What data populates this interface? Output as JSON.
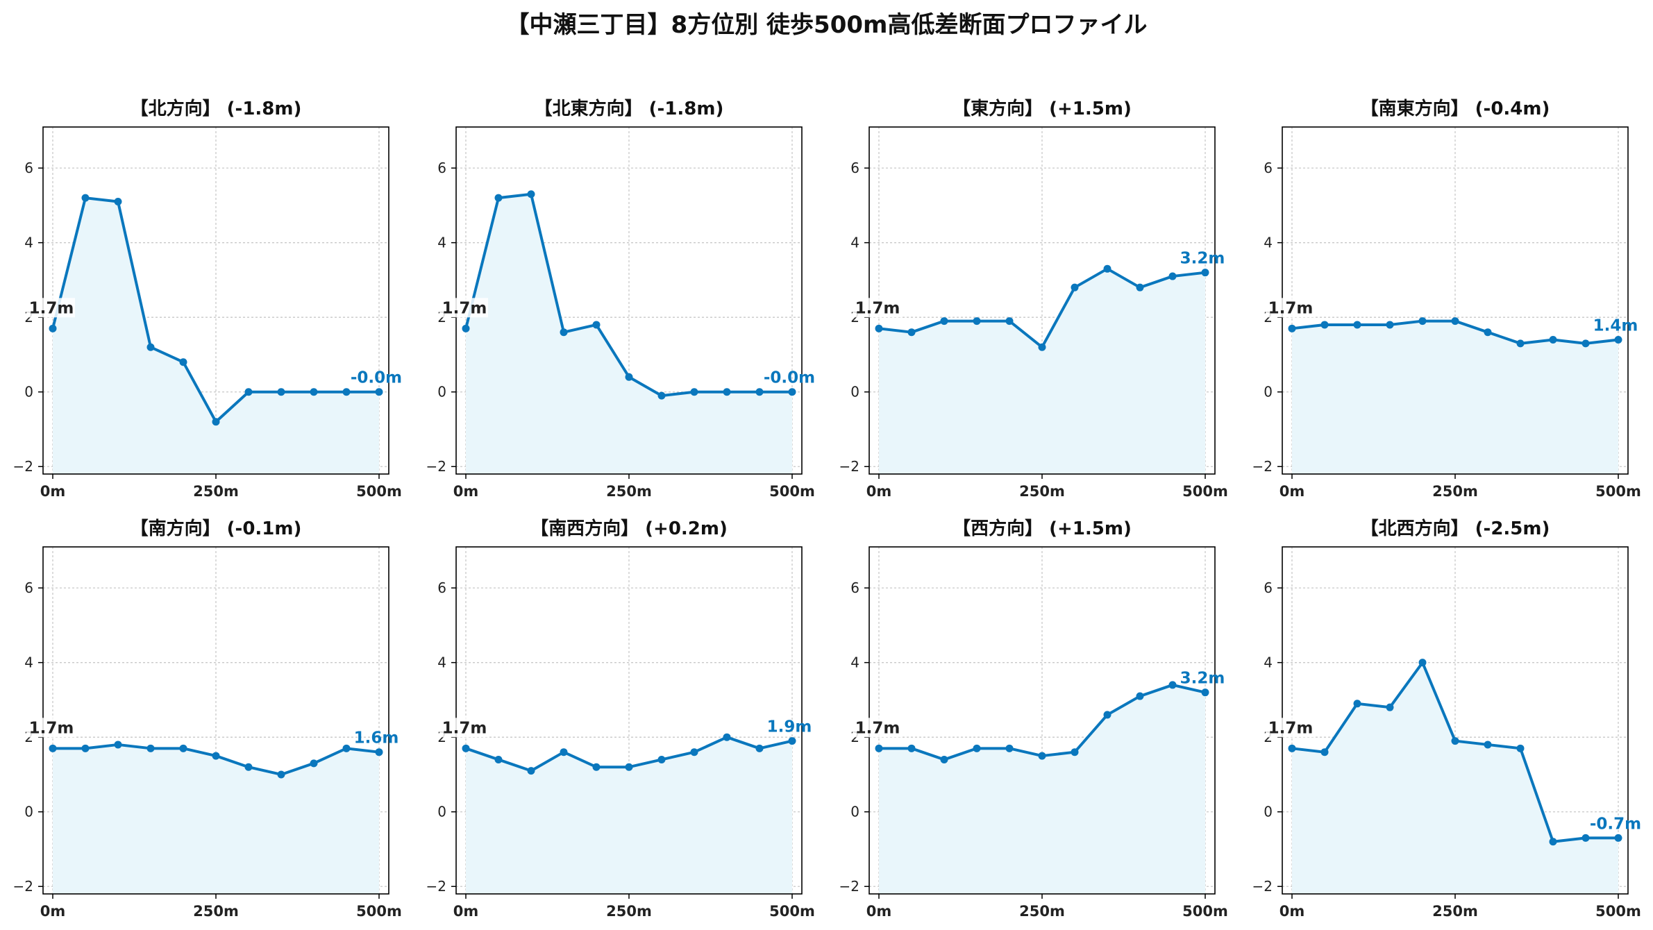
{
  "title": "【中瀬三丁目】8方位別 徒歩500m高低差断面プロファイル",
  "colors": {
    "line": "#0a77bd",
    "fill": "#e9f6fb",
    "grid": "#c8c8c8",
    "frame": "#000000"
  },
  "chart_data": [
    {
      "type": "area",
      "title": "【北方向】 (-1.8m)",
      "x": [
        0,
        50,
        100,
        150,
        200,
        250,
        300,
        350,
        400,
        450,
        500
      ],
      "y": [
        1.7,
        5.2,
        5.1,
        1.2,
        0.8,
        -0.8,
        -0.0,
        -0.0,
        -0.0,
        -0.0,
        -0.0
      ],
      "start_label": "1.7m",
      "end_label": "-0.0m",
      "xticks": [
        "0m",
        "250m",
        "500m"
      ],
      "yticks": [
        "−2",
        "0",
        "2",
        "4",
        "6"
      ],
      "xlim": [
        0,
        500
      ],
      "ylim": [
        -2.2,
        7.1
      ],
      "grid": true
    },
    {
      "type": "area",
      "title": "【北東方向】 (-1.8m)",
      "x": [
        0,
        50,
        100,
        150,
        200,
        250,
        300,
        350,
        400,
        450,
        500
      ],
      "y": [
        1.7,
        5.2,
        5.3,
        1.6,
        1.8,
        0.4,
        -0.1,
        -0.0,
        -0.0,
        -0.0,
        -0.0
      ],
      "start_label": "1.7m",
      "end_label": "-0.0m",
      "xticks": [
        "0m",
        "250m",
        "500m"
      ],
      "yticks": [
        "−2",
        "0",
        "2",
        "4",
        "6"
      ],
      "xlim": [
        0,
        500
      ],
      "ylim": [
        -2.2,
        7.1
      ],
      "grid": true
    },
    {
      "type": "area",
      "title": "【東方向】 (+1.5m)",
      "x": [
        0,
        50,
        100,
        150,
        200,
        250,
        300,
        350,
        400,
        450,
        500
      ],
      "y": [
        1.7,
        1.6,
        1.9,
        1.9,
        1.9,
        1.2,
        2.8,
        3.3,
        2.8,
        3.1,
        3.2
      ],
      "start_label": "1.7m",
      "end_label": "3.2m",
      "xticks": [
        "0m",
        "250m",
        "500m"
      ],
      "yticks": [
        "−2",
        "0",
        "2",
        "4",
        "6"
      ],
      "xlim": [
        0,
        500
      ],
      "ylim": [
        -2.2,
        7.1
      ],
      "grid": true
    },
    {
      "type": "area",
      "title": "【南東方向】 (-0.4m)",
      "x": [
        0,
        50,
        100,
        150,
        200,
        250,
        300,
        350,
        400,
        450,
        500
      ],
      "y": [
        1.7,
        1.8,
        1.8,
        1.8,
        1.9,
        1.9,
        1.6,
        1.3,
        1.4,
        1.3,
        1.4
      ],
      "start_label": "1.7m",
      "end_label": "1.4m",
      "xticks": [
        "0m",
        "250m",
        "500m"
      ],
      "yticks": [
        "−2",
        "0",
        "2",
        "4",
        "6"
      ],
      "xlim": [
        0,
        500
      ],
      "ylim": [
        -2.2,
        7.1
      ],
      "grid": true
    },
    {
      "type": "area",
      "title": "【南方向】 (-0.1m)",
      "x": [
        0,
        50,
        100,
        150,
        200,
        250,
        300,
        350,
        400,
        450,
        500
      ],
      "y": [
        1.7,
        1.7,
        1.8,
        1.7,
        1.7,
        1.5,
        1.2,
        1.0,
        1.3,
        1.7,
        1.6
      ],
      "start_label": "1.7m",
      "end_label": "1.6m",
      "xticks": [
        "0m",
        "250m",
        "500m"
      ],
      "yticks": [
        "−2",
        "0",
        "2",
        "4",
        "6"
      ],
      "xlim": [
        0,
        500
      ],
      "ylim": [
        -2.2,
        7.1
      ],
      "grid": true
    },
    {
      "type": "area",
      "title": "【南西方向】 (+0.2m)",
      "x": [
        0,
        50,
        100,
        150,
        200,
        250,
        300,
        350,
        400,
        450,
        500
      ],
      "y": [
        1.7,
        1.4,
        1.1,
        1.6,
        1.2,
        1.2,
        1.4,
        1.6,
        2.0,
        1.7,
        1.9
      ],
      "start_label": "1.7m",
      "end_label": "1.9m",
      "xticks": [
        "0m",
        "250m",
        "500m"
      ],
      "yticks": [
        "−2",
        "0",
        "2",
        "4",
        "6"
      ],
      "xlim": [
        0,
        500
      ],
      "ylim": [
        -2.2,
        7.1
      ],
      "grid": true
    },
    {
      "type": "area",
      "title": "【西方向】 (+1.5m)",
      "x": [
        0,
        50,
        100,
        150,
        200,
        250,
        300,
        350,
        400,
        450,
        500
      ],
      "y": [
        1.7,
        1.7,
        1.4,
        1.7,
        1.7,
        1.5,
        1.6,
        2.6,
        3.1,
        3.4,
        3.2
      ],
      "start_label": "1.7m",
      "end_label": "3.2m",
      "xticks": [
        "0m",
        "250m",
        "500m"
      ],
      "yticks": [
        "−2",
        "0",
        "2",
        "4",
        "6"
      ],
      "xlim": [
        0,
        500
      ],
      "ylim": [
        -2.2,
        7.1
      ],
      "grid": true
    },
    {
      "type": "area",
      "title": "【北西方向】 (-2.5m)",
      "x": [
        0,
        50,
        100,
        150,
        200,
        250,
        300,
        350,
        400,
        450,
        500
      ],
      "y": [
        1.7,
        1.6,
        2.9,
        2.8,
        4.0,
        1.9,
        1.8,
        1.7,
        -0.8,
        -0.7,
        -0.7
      ],
      "start_label": "1.7m",
      "end_label": "-0.7m",
      "xticks": [
        "0m",
        "250m",
        "500m"
      ],
      "yticks": [
        "−2",
        "0",
        "2",
        "4",
        "6"
      ],
      "xlim": [
        0,
        500
      ],
      "ylim": [
        -2.2,
        7.1
      ],
      "grid": true
    }
  ]
}
